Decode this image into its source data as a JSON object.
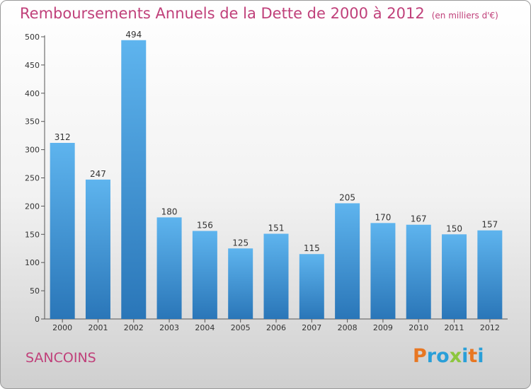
{
  "title": "Remboursements Annuels de la Dette de 2000 à 2012",
  "unit_note": "(en milliers d'€)",
  "commune": "SANCOINS",
  "logo": {
    "letters": [
      "P",
      "r",
      "o",
      "x",
      "i",
      "t",
      "i"
    ],
    "colors": [
      "#e87722",
      "#2a9fd8",
      "#2a9fd8",
      "#8cc63f",
      "#2a9fd8",
      "#e87722",
      "#2a9fd8"
    ]
  },
  "chart_data": {
    "type": "bar",
    "categories": [
      "2000",
      "2001",
      "2002",
      "2003",
      "2004",
      "2005",
      "2006",
      "2007",
      "2008",
      "2009",
      "2010",
      "2011",
      "2012"
    ],
    "values": [
      312,
      247,
      494,
      180,
      156,
      125,
      151,
      115,
      205,
      170,
      167,
      150,
      157
    ],
    "ylim": [
      0,
      500
    ],
    "yticks": [
      0,
      50,
      100,
      150,
      200,
      250,
      300,
      350,
      400,
      450,
      500
    ],
    "grid": false,
    "bar_color": "#3a8fd2"
  }
}
